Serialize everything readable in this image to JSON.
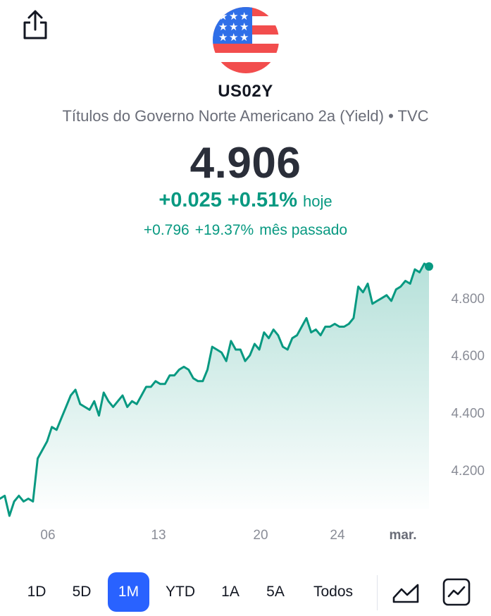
{
  "header": {
    "share_icon": "share-icon",
    "flag_icon": "us-flag-icon",
    "symbol": "US02Y",
    "description": "Títulos do Governo Norte Americano 2a (Yield) • TVC"
  },
  "quote": {
    "price": "4.906",
    "change_today": "+0.025",
    "change_today_pct": "+0.51%",
    "today_label": "hoje",
    "change_month": "+0.796",
    "change_month_pct": "+19.37%",
    "month_label": "mês passado",
    "up_color": "#089981"
  },
  "chart_data": {
    "type": "area",
    "x_tick_labels": [
      "06",
      "13",
      "20",
      "24",
      "mar."
    ],
    "y_tick_labels": [
      "4.800",
      "4.600",
      "4.400",
      "4.200"
    ],
    "ylim": [
      4.02,
      4.93
    ],
    "grid": false,
    "line_color": "#089981",
    "series": [
      {
        "values": [
          4.1,
          4.11,
          4.04,
          4.09,
          4.11,
          4.09,
          4.1,
          4.09,
          4.24,
          4.27,
          4.3,
          4.35,
          4.34,
          4.38,
          4.42,
          4.46,
          4.48,
          4.43,
          4.42,
          4.41,
          4.44,
          4.39,
          4.47,
          4.44,
          4.42,
          4.44,
          4.46,
          4.42,
          4.44,
          4.43,
          4.46,
          4.49,
          4.49,
          4.51,
          4.5,
          4.5,
          4.53,
          4.53,
          4.55,
          4.56,
          4.55,
          4.52,
          4.51,
          4.51,
          4.55,
          4.63,
          4.62,
          4.61,
          4.58,
          4.65,
          4.62,
          4.62,
          4.58,
          4.6,
          4.64,
          4.62,
          4.68,
          4.66,
          4.69,
          4.67,
          4.63,
          4.62,
          4.66,
          4.67,
          4.7,
          4.73,
          4.68,
          4.69,
          4.67,
          4.7,
          4.7,
          4.71,
          4.7,
          4.7,
          4.71,
          4.73,
          4.84,
          4.82,
          4.85,
          4.78,
          4.79,
          4.8,
          4.81,
          4.79,
          4.83,
          4.84,
          4.86,
          4.85,
          4.9,
          4.89,
          4.92,
          4.91
        ]
      }
    ]
  },
  "ranges": {
    "items": [
      "1D",
      "5D",
      "1M",
      "YTD",
      "1A",
      "5A",
      "Todos"
    ],
    "active": "1M"
  },
  "controls": {
    "chart_type_icon": "area-chart-icon",
    "compare_icon": "line-chart-icon"
  }
}
